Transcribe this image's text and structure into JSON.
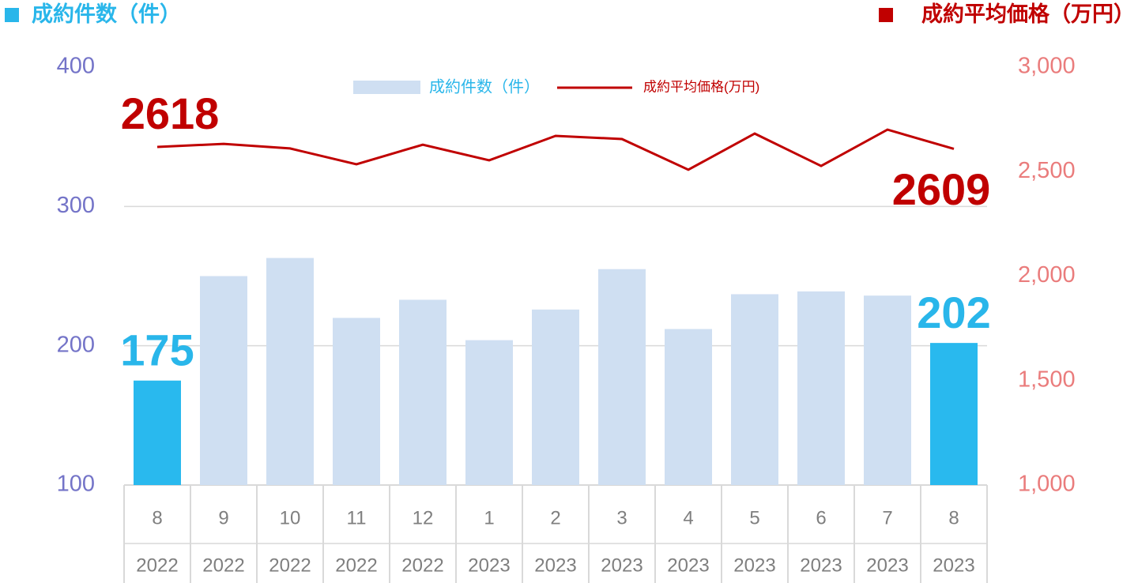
{
  "chart_data": {
    "type": "bar_line",
    "ylabel": "成約件数（件）",
    "y2label": "成約平均価格（万円）",
    "ylabel_color": "#29b6ea",
    "y2label_color": "#c00000",
    "categories": [
      "8",
      "9",
      "10",
      "11",
      "12",
      "1",
      "2",
      "3",
      "4",
      "5",
      "6",
      "7",
      "8"
    ],
    "category_years": [
      "2022",
      "2022",
      "2022",
      "2022",
      "2022",
      "2023",
      "2023",
      "2023",
      "2023",
      "2023",
      "2023",
      "2023",
      "2023"
    ],
    "series": [
      {
        "name": "成約件数（件）",
        "type": "bar",
        "axis": "y",
        "color": "#cfdff2",
        "highlight_color": "#29b9ee",
        "highlight_indices": [
          0,
          12
        ],
        "label_indices": [
          0,
          12
        ],
        "label_color": "#29b6ea",
        "values": [
          175,
          250,
          263,
          220,
          233,
          204,
          226,
          255,
          212,
          237,
          239,
          236,
          202
        ]
      },
      {
        "name": "成約平均価格(万円)",
        "type": "line",
        "axis": "y2",
        "color": "#c00000",
        "label_indices": [
          0,
          12
        ],
        "label_color": "#c00000",
        "values": [
          2618,
          2633,
          2611,
          2535,
          2629,
          2554,
          2671,
          2656,
          2509,
          2682,
          2527,
          2701,
          2609
        ]
      }
    ],
    "ylim": [
      100,
      400
    ],
    "yticks": [
      100,
      200,
      300,
      400
    ],
    "ytick_color": "#7474c8",
    "y2lim": [
      1000,
      3000
    ],
    "y2ticks": [
      {
        "value": 1000,
        "label": "1,000"
      },
      {
        "value": 1500,
        "label": "1,500"
      },
      {
        "value": 2000,
        "label": "2,000"
      },
      {
        "value": 2500,
        "label": "2,500"
      },
      {
        "value": 3000,
        "label": "3,000"
      }
    ],
    "y2tick_color": "#ea7c7c",
    "grid": true
  }
}
